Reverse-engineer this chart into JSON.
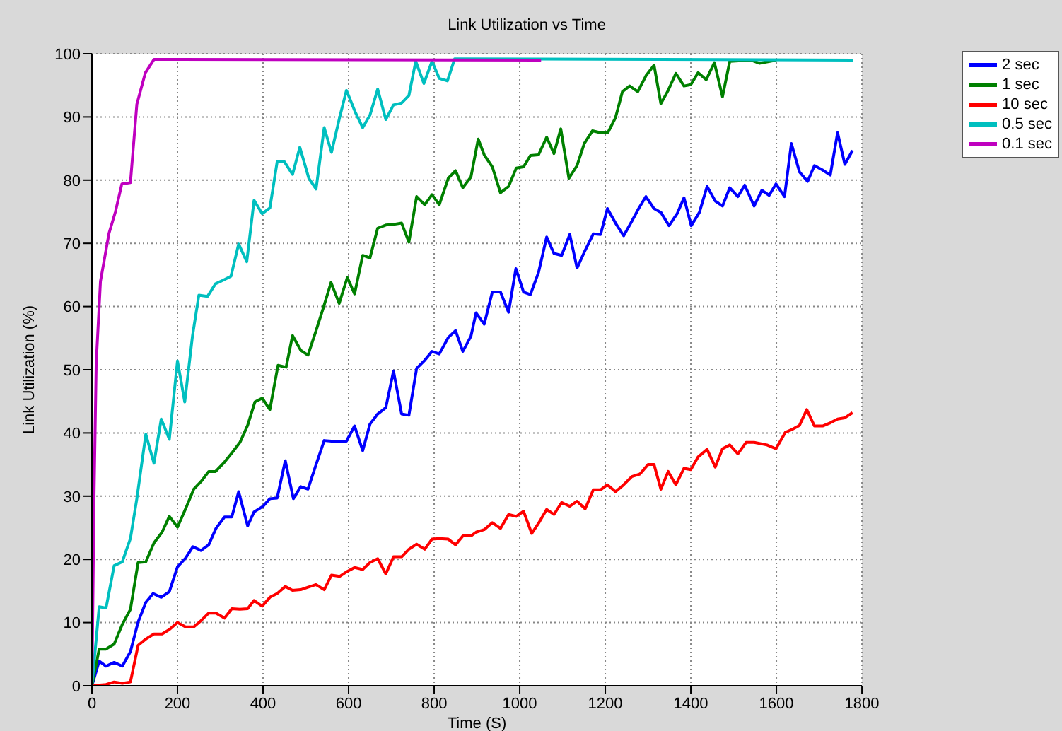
{
  "chart_data": {
    "type": "line",
    "title": "Link Utilization vs Time",
    "xlabel": "Time (S)",
    "ylabel": "Link Utilization (%)",
    "xlim": [
      0,
      1800
    ],
    "xticks": [
      0,
      200,
      400,
      600,
      800,
      1000,
      1200,
      1400,
      1600,
      1800
    ],
    "ylim": [
      0,
      100
    ],
    "yticks": [
      0,
      10,
      20,
      30,
      40,
      50,
      60,
      70,
      80,
      90,
      100
    ],
    "grid": true,
    "legend": "top right",
    "marker": "none",
    "line_style": "solid",
    "series": [
      {
        "name": "2 sec",
        "color": "#0000ff",
        "x": [
          0,
          17,
          33,
          52,
          71,
          90,
          108,
          126,
          143,
          162,
          181,
          200,
          219,
          236,
          255,
          273,
          290,
          310,
          327,
          343,
          364,
          379,
          400,
          416,
          433,
          452,
          471,
          488,
          505,
          524,
          543,
          560,
          579,
          595,
          614,
          633,
          650,
          668,
          687,
          705,
          724,
          741,
          759,
          778,
          795,
          812,
          833,
          850,
          867,
          886,
          898,
          917,
          936,
          955,
          974,
          991,
          1009,
          1025,
          1044,
          1063,
          1080,
          1098,
          1117,
          1134,
          1153,
          1172,
          1189,
          1205,
          1224,
          1243,
          1262,
          1278,
          1295,
          1314,
          1330,
          1349,
          1368,
          1384,
          1401,
          1420,
          1438,
          1457,
          1474,
          1491,
          1510,
          1526,
          1548,
          1566,
          1583,
          1599,
          1619,
          1635,
          1654,
          1673,
          1689,
          1708,
          1726,
          1743,
          1760,
          1778
        ],
        "values": [
          0,
          3.9,
          3.1,
          3.7,
          3.1,
          5.4,
          10.1,
          13.2,
          14.6,
          14,
          14.9,
          18.8,
          20.2,
          22,
          21.4,
          22.3,
          24.9,
          26.7,
          26.7,
          30.7,
          25.3,
          27.5,
          28.4,
          29.6,
          29.7,
          35.6,
          29.6,
          31.5,
          31.1,
          35,
          38.8,
          38.7,
          38.7,
          38.7,
          41.1,
          37.2,
          41.4,
          43,
          44,
          49.8,
          43,
          42.8,
          50.2,
          51.5,
          52.9,
          52.5,
          55.1,
          56.2,
          52.9,
          55.3,
          59,
          57.2,
          62.3,
          62.3,
          59.1,
          66,
          62.3,
          61.9,
          65.4,
          71,
          68.4,
          68.1,
          71.4,
          66.1,
          68.9,
          71.5,
          71.4,
          75.5,
          73.2,
          71.2,
          73.5,
          75.5,
          77.4,
          75.5,
          74.9,
          72.8,
          74.7,
          77.2,
          72.8,
          74.9,
          79,
          76.7,
          75.9,
          78.8,
          77.4,
          79.2,
          75.9,
          78.4,
          77.6,
          79.4,
          77.4,
          85.8,
          81.3,
          79.8,
          82.3,
          81.6,
          80.8,
          87.5,
          82.5,
          84.7
        ]
      },
      {
        "name": "1 sec",
        "color": "#008000",
        "x": [
          0,
          17,
          33,
          52,
          71,
          90,
          108,
          126,
          145,
          164,
          181,
          200,
          219,
          238,
          255,
          273,
          289,
          310,
          329,
          346,
          364,
          381,
          398,
          416,
          435,
          454,
          469,
          488,
          505,
          524,
          541,
          559,
          578,
          597,
          614,
          633,
          650,
          668,
          687,
          705,
          724,
          741,
          759,
          778,
          795,
          812,
          833,
          850,
          867,
          886,
          903,
          917,
          936,
          955,
          974,
          992,
          1009,
          1025,
          1044,
          1063,
          1080,
          1096,
          1115,
          1134,
          1151,
          1170,
          1189,
          1206,
          1224,
          1240,
          1257,
          1276,
          1295,
          1314,
          1330,
          1347,
          1365,
          1384,
          1400,
          1417,
          1436,
          1455,
          1474,
          1491,
          1540,
          1560,
          1600
        ],
        "values": [
          0,
          5.8,
          5.8,
          6.6,
          9.7,
          12.1,
          19.5,
          19.6,
          22.6,
          24.3,
          26.8,
          25.1,
          28,
          31.1,
          32.3,
          33.9,
          33.9,
          35.4,
          37,
          38.5,
          41.2,
          44.9,
          45.5,
          43.7,
          50.7,
          50.4,
          55.4,
          53.1,
          52.3,
          56.2,
          59.8,
          63.8,
          60.5,
          64.6,
          62,
          68.1,
          67.7,
          72.4,
          72.9,
          73,
          73.2,
          70.2,
          77.4,
          76.1,
          77.7,
          76.1,
          80.3,
          81.5,
          78.8,
          80.5,
          86.5,
          84,
          82.1,
          78,
          79,
          81.9,
          82.1,
          83.9,
          84,
          86.8,
          84.2,
          88.1,
          80.3,
          82.3,
          85.8,
          87.8,
          87.5,
          87.5,
          89.9,
          94,
          94.9,
          94,
          96.5,
          98.2,
          92.1,
          94.2,
          96.9,
          94.9,
          95.1,
          97,
          95.9,
          98.6,
          93.2,
          98.8,
          99,
          98.5,
          99
        ]
      },
      {
        "name": "10 sec",
        "color": "#ff0000",
        "x": [
          0,
          33,
          52,
          71,
          90,
          108,
          126,
          145,
          164,
          181,
          200,
          219,
          238,
          255,
          273,
          290,
          310,
          327,
          346,
          364,
          379,
          398,
          416,
          433,
          452,
          469,
          488,
          505,
          524,
          543,
          560,
          579,
          597,
          614,
          633,
          650,
          668,
          687,
          705,
          724,
          741,
          759,
          778,
          795,
          812,
          833,
          850,
          867,
          886,
          898,
          917,
          936,
          955,
          974,
          992,
          1009,
          1028,
          1044,
          1063,
          1080,
          1098,
          1117,
          1134,
          1153,
          1172,
          1189,
          1205,
          1224,
          1243,
          1262,
          1281,
          1300,
          1314,
          1330,
          1347,
          1365,
          1384,
          1400,
          1417,
          1438,
          1457,
          1474,
          1491,
          1510,
          1529,
          1548,
          1578,
          1599,
          1621,
          1635,
          1654,
          1671,
          1689,
          1708,
          1726,
          1743,
          1760,
          1778
        ],
        "values": [
          0,
          0.2,
          0.6,
          0.4,
          0.6,
          6.4,
          7.4,
          8.2,
          8.2,
          8.9,
          10,
          9.3,
          9.3,
          10.3,
          11.5,
          11.5,
          10.7,
          12.2,
          12.1,
          12.2,
          13.5,
          12.6,
          14,
          14.6,
          15.7,
          15.1,
          15.2,
          15.6,
          16,
          15.2,
          17.5,
          17.3,
          18.1,
          18.7,
          18.4,
          19.5,
          20.1,
          17.7,
          20.4,
          20.4,
          21.6,
          22.4,
          21.6,
          23.2,
          23.3,
          23.2,
          22.3,
          23.7,
          23.7,
          24.3,
          24.7,
          25.8,
          24.9,
          27.1,
          26.8,
          27.6,
          24.1,
          25.7,
          27.9,
          27.1,
          29,
          28.4,
          29.2,
          28,
          31,
          31,
          31.8,
          30.7,
          31.8,
          33.1,
          33.5,
          35,
          35,
          31.1,
          33.9,
          31.8,
          34.4,
          34.2,
          36.2,
          37.4,
          34.6,
          37.5,
          38.1,
          36.7,
          38.5,
          38.5,
          38.1,
          37.5,
          40.1,
          40.5,
          41.2,
          43.7,
          41.1,
          41.1,
          41.6,
          42.2,
          42.4,
          43.2
        ]
      },
      {
        "name": "0.5 sec",
        "color": "#00bfbf",
        "x": [
          0,
          17,
          33,
          52,
          71,
          90,
          105,
          126,
          145,
          162,
          181,
          200,
          217,
          235,
          250,
          270,
          289,
          308,
          325,
          343,
          362,
          379,
          398,
          416,
          433,
          450,
          469,
          486,
          507,
          524,
          543,
          560,
          579,
          595,
          616,
          633,
          650,
          668,
          687,
          705,
          724,
          741,
          757,
          776,
          795,
          812,
          831,
          848,
          1780
        ],
        "values": [
          0,
          12.5,
          12.3,
          19,
          19.6,
          23.3,
          29.6,
          39.8,
          35.2,
          42.2,
          39,
          51.4,
          44.9,
          55.3,
          61.8,
          61.6,
          63.6,
          64.2,
          64.8,
          69.9,
          67.1,
          76.8,
          74.7,
          75.6,
          82.9,
          82.9,
          80.9,
          85.2,
          80.3,
          78.6,
          88.3,
          84.4,
          89.9,
          94.2,
          90.7,
          88.3,
          90.3,
          94.4,
          89.6,
          91.9,
          92.2,
          93.4,
          98.8,
          95.3,
          98.8,
          96.1,
          95.7,
          99.2,
          99
        ]
      },
      {
        "name": "0.1 sec",
        "color": "#bf00bf",
        "x": [
          0,
          5,
          10,
          20,
          40,
          55,
          70,
          90,
          105,
          125,
          145,
          1050
        ],
        "values": [
          0,
          30,
          51,
          64,
          71.6,
          75,
          79.4,
          79.6,
          92,
          97,
          99.1,
          99
        ]
      }
    ]
  }
}
